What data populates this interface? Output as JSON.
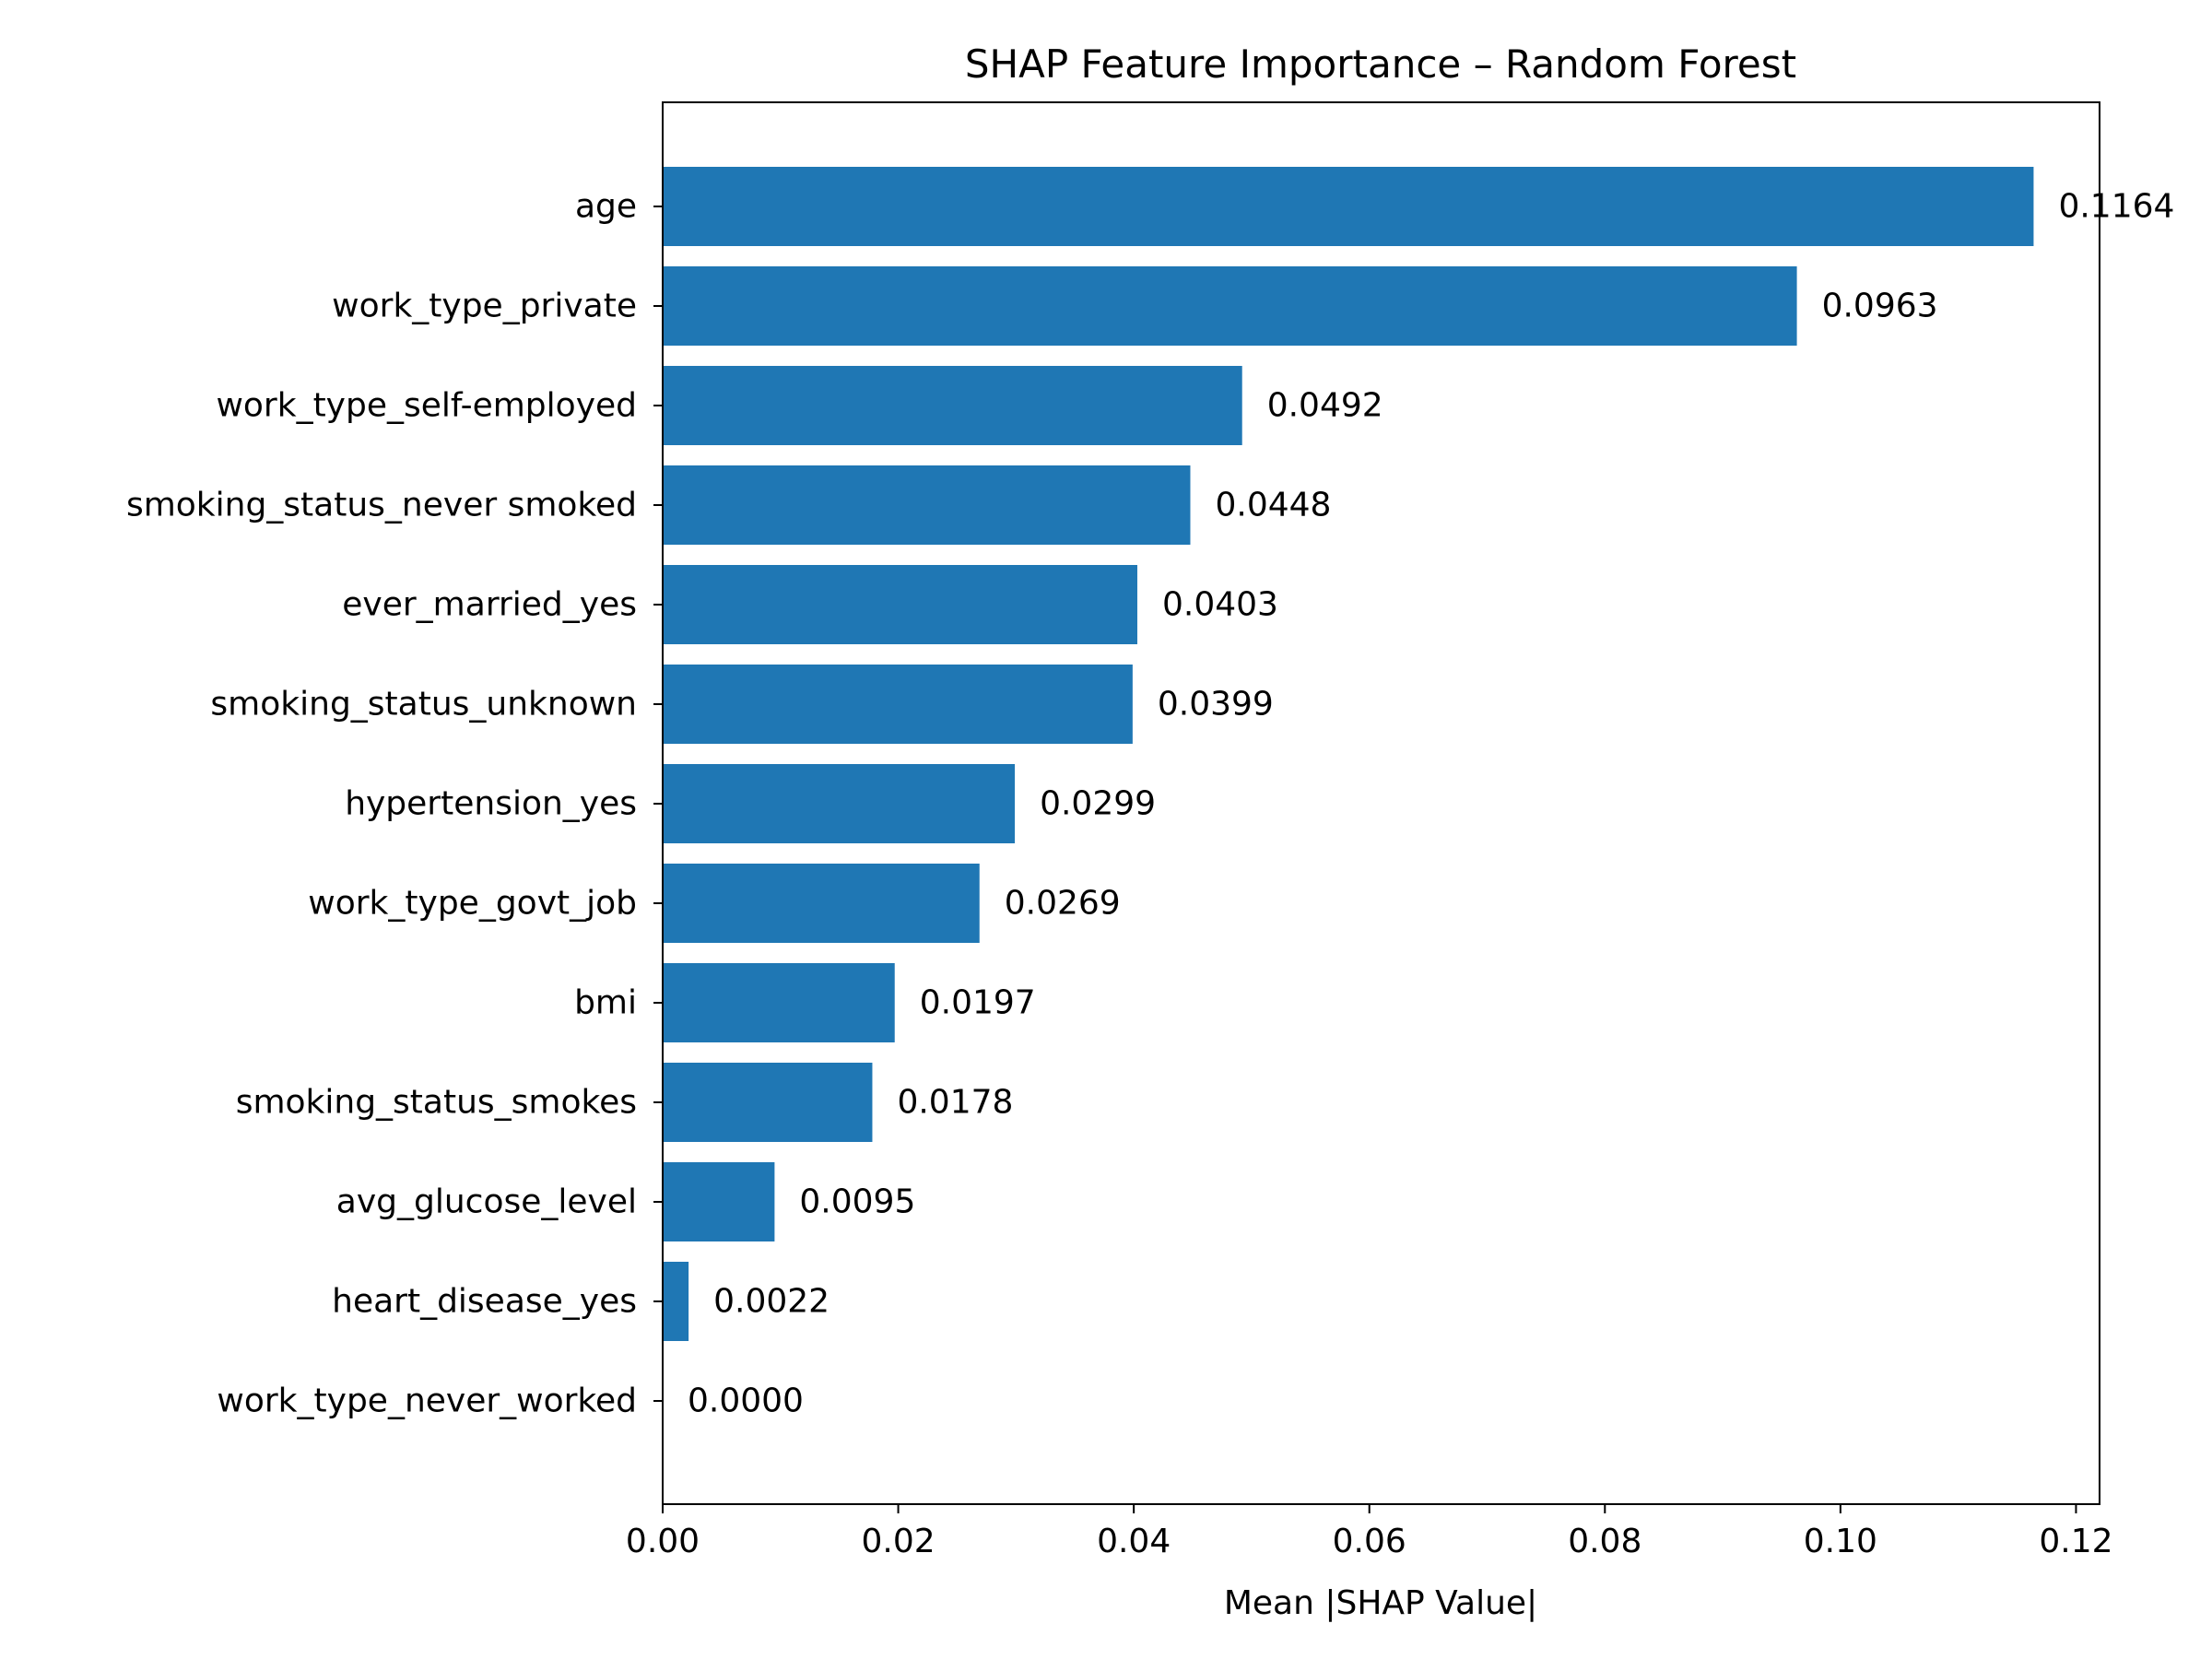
{
  "chart_data": {
    "type": "bar",
    "orientation": "horizontal",
    "title": "SHAP Feature Importance – Random Forest",
    "xlabel": "Mean |SHAP Value|",
    "ylabel": "",
    "xlim": [
      0,
      0.122
    ],
    "xticks": [
      0.0,
      0.02,
      0.04,
      0.06,
      0.08,
      0.1,
      0.12
    ],
    "xtick_labels": [
      "0.00",
      "0.02",
      "0.04",
      "0.06",
      "0.08",
      "0.10",
      "0.12"
    ],
    "categories": [
      "age",
      "work_type_private",
      "work_type_self-employed",
      "smoking_status_never smoked",
      "ever_married_yes",
      "smoking_status_unknown",
      "hypertension_yes",
      "work_type_govt_job",
      "bmi",
      "smoking_status_smokes",
      "avg_glucose_level",
      "heart_disease_yes",
      "work_type_never_worked"
    ],
    "values": [
      0.1164,
      0.0963,
      0.0492,
      0.0448,
      0.0403,
      0.0399,
      0.0299,
      0.0269,
      0.0197,
      0.0178,
      0.0095,
      0.0022,
      0.0
    ],
    "value_labels": [
      "0.1164",
      "0.0963",
      "0.0492",
      "0.0448",
      "0.0403",
      "0.0399",
      "0.0299",
      "0.0269",
      "0.0197",
      "0.0178",
      "0.0095",
      "0.0022",
      "0.0000"
    ],
    "bar_color": "#1f77b4",
    "grid": false,
    "legend": "none"
  }
}
